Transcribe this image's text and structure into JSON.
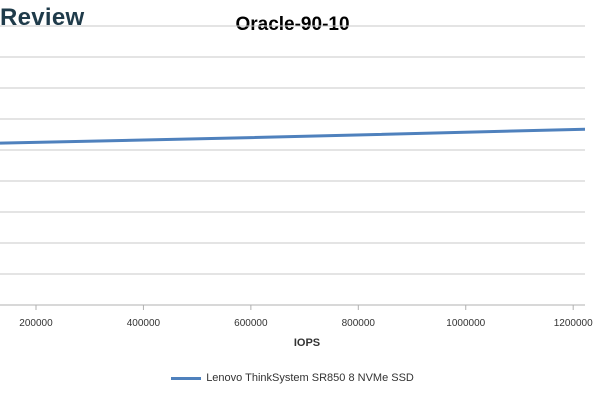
{
  "brand": {
    "text": "Review"
  },
  "chart_data": {
    "type": "line",
    "title": "Oracle-90-10",
    "xlabel": "IOPS",
    "ylabel": "",
    "x_ticks": [
      200000,
      400000,
      600000,
      800000,
      1000000,
      1200000
    ],
    "xlim": [
      133000,
      1222000
    ],
    "grid": true,
    "legend_position": "bottom",
    "series": [
      {
        "name": "Lenovo ThinkSystem SR850 8 NVMe SSD",
        "color": "#4f81bd",
        "x": [
          133000,
          600000,
          1222000
        ],
        "y": [
          0.58,
          0.6,
          0.63
        ]
      }
    ],
    "ylim": [
      0,
      1
    ]
  }
}
